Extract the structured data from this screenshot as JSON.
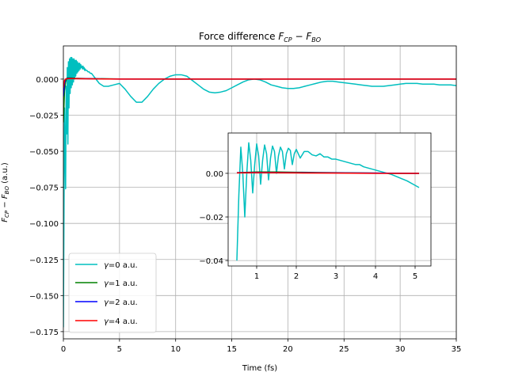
{
  "chart_data": [
    {
      "id": "main",
      "type": "line",
      "title": "Force difference F_{CP} − F_{BO}",
      "title_parts": {
        "prefix": "Force difference ",
        "sub1_base": "F",
        "sub1": "CP",
        "minus": " − ",
        "sub2_base": "F",
        "sub2": "BO"
      },
      "xlabel": "Time (fs)",
      "ylabel": "F_{CP} − F_{BO} (a.u.)",
      "ylabel_parts": {
        "base1": "F",
        "sub1": "CP",
        "minus": " − ",
        "base2": "F",
        "sub2": "BO",
        "unit": " (a.u.)"
      },
      "xlim": [
        0,
        35
      ],
      "ylim": [
        -0.18,
        0.023
      ],
      "xticks": [
        0,
        5,
        10,
        15,
        20,
        25,
        30,
        35
      ],
      "xtick_labels": [
        "0",
        "5",
        "10",
        "15",
        "20",
        "25",
        "30",
        "35"
      ],
      "yticks": [
        0.0,
        -0.025,
        -0.05,
        -0.075,
        -0.1,
        -0.125,
        -0.15,
        -0.175
      ],
      "ytick_labels": [
        "0.000",
        "−0.025",
        "−0.050",
        "−0.075",
        "−0.100",
        "−0.125",
        "−0.150",
        "−0.175"
      ],
      "grid": true,
      "legend_position": "lower-left",
      "series": [
        {
          "name": "γ=0 a.u.",
          "name_parts": {
            "symbol": "γ",
            "rest": "=0 a.u."
          },
          "color": "#00bfbf",
          "x": [
            0.0,
            0.1,
            0.2,
            0.25,
            0.3,
            0.35,
            0.4,
            0.45,
            0.5,
            0.55,
            0.6,
            0.65,
            0.7,
            0.75,
            0.8,
            0.85,
            0.9,
            0.95,
            1.0,
            1.05,
            1.1,
            1.15,
            1.2,
            1.25,
            1.3,
            1.35,
            1.4,
            1.45,
            1.5,
            1.55,
            1.6,
            1.65,
            1.7,
            1.75,
            1.8,
            1.85,
            1.9,
            1.95,
            2.0,
            2.1,
            2.2,
            2.3,
            2.4,
            2.5,
            2.6,
            2.7,
            2.8,
            2.9,
            3.0,
            3.2,
            3.4,
            3.6,
            3.8,
            4.0,
            4.5,
            5.0,
            5.5,
            6.0,
            6.5,
            7.0,
            7.5,
            8.0,
            8.5,
            9.0,
            9.5,
            10.0,
            10.5,
            11.0,
            11.5,
            12.0,
            12.5,
            13.0,
            13.5,
            14.0,
            14.5,
            15.0,
            15.5,
            16.0,
            16.5,
            17.0,
            17.5,
            18.0,
            18.5,
            19.0,
            19.5,
            20.0,
            20.5,
            21.0,
            21.5,
            22.0,
            22.5,
            23.0,
            23.5,
            24.0,
            24.5,
            25.0,
            25.5,
            26.0,
            26.5,
            27.0,
            27.5,
            28.0,
            28.5,
            29.0,
            29.5,
            30.0,
            30.5,
            31.0,
            31.5,
            32.0,
            32.5,
            33.0,
            33.5,
            34.0,
            34.5,
            35.0
          ],
          "y": [
            -0.172,
            -0.02,
            -0.076,
            -0.005,
            -0.038,
            0.008,
            -0.045,
            0.012,
            -0.02,
            0.014,
            -0.01,
            0.015,
            -0.006,
            0.015,
            -0.004,
            0.014,
            -0.002,
            0.014,
            0.0,
            0.013,
            0.002,
            0.013,
            0.004,
            0.012,
            0.005,
            0.011,
            0.006,
            0.011,
            0.007,
            0.01,
            0.008,
            0.009,
            0.007,
            0.009,
            0.007,
            0.008,
            0.006,
            0.007,
            0.006,
            0.006,
            0.005,
            0.005,
            0.004,
            0.004,
            0.003,
            0.002,
            0.001,
            0.0,
            -0.001,
            -0.003,
            -0.004,
            -0.005,
            -0.005,
            -0.005,
            -0.004,
            -0.003,
            -0.007,
            -0.012,
            -0.016,
            -0.016,
            -0.012,
            -0.007,
            -0.003,
            0.0,
            0.002,
            0.003,
            0.003,
            0.002,
            -0.001,
            -0.004,
            -0.007,
            -0.009,
            -0.0095,
            -0.009,
            -0.008,
            -0.006,
            -0.004,
            -0.002,
            -0.0005,
            0.0,
            -0.0005,
            -0.002,
            -0.004,
            -0.005,
            -0.006,
            -0.0065,
            -0.0065,
            -0.006,
            -0.005,
            -0.004,
            -0.003,
            -0.002,
            -0.0015,
            -0.0015,
            -0.002,
            -0.0025,
            -0.003,
            -0.0035,
            -0.004,
            -0.0045,
            -0.005,
            -0.005,
            -0.005,
            -0.0045,
            -0.004,
            -0.0035,
            -0.003,
            -0.003,
            -0.003,
            -0.0035,
            -0.0035,
            -0.0035,
            -0.004,
            -0.004,
            -0.004,
            -0.0045
          ]
        },
        {
          "name": "γ=1 a.u.",
          "name_parts": {
            "symbol": "γ",
            "rest": "=1 a.u."
          },
          "color": "#008000",
          "x": [
            0.0,
            0.1,
            0.2,
            0.3,
            0.4,
            0.5,
            0.7,
            1.0,
            2.0,
            5.0,
            10.0,
            20.0,
            30.0,
            35.0
          ],
          "y": [
            -0.03,
            -0.008,
            -0.002,
            0.0005,
            0.0008,
            0.0008,
            0.0008,
            0.0006,
            0.0004,
            0.0001,
            0.0,
            0.0,
            0.0,
            0.0
          ]
        },
        {
          "name": "γ=2 a.u.",
          "name_parts": {
            "symbol": "γ",
            "rest": "=2 a.u."
          },
          "color": "#0000ff",
          "x": [
            0.0,
            0.1,
            0.2,
            0.3,
            0.5,
            1.0,
            2.0,
            5.0,
            10.0,
            20.0,
            30.0,
            35.0
          ],
          "y": [
            -0.012,
            -0.003,
            0.0,
            0.0003,
            0.0005,
            0.0004,
            0.0003,
            0.0,
            0.0,
            0.0,
            0.0,
            0.0
          ]
        },
        {
          "name": "γ=4 a.u.",
          "name_parts": {
            "symbol": "γ",
            "rest": "=4 a.u."
          },
          "color": "#ff0000",
          "x": [
            0.0,
            0.1,
            0.2,
            0.3,
            0.5,
            1.0,
            2.0,
            5.0,
            10.0,
            20.0,
            30.0,
            35.0
          ],
          "y": [
            -0.006,
            -0.001,
            0.0,
            0.0002,
            0.0003,
            0.0003,
            0.0002,
            0.0,
            0.0,
            0.0,
            0.0,
            0.0
          ]
        }
      ]
    },
    {
      "id": "inset",
      "type": "line",
      "title": "",
      "xlabel": "",
      "ylabel": "",
      "xlim": [
        0.28,
        5.4
      ],
      "ylim": [
        -0.0425,
        0.0185
      ],
      "xticks": [
        1,
        2,
        3,
        4,
        5
      ],
      "xtick_labels": [
        "1",
        "2",
        "3",
        "4",
        "5"
      ],
      "yticks": [
        0.0,
        -0.02,
        -0.04
      ],
      "ytick_labels": [
        "0.00",
        "−0.02",
        "−0.04"
      ],
      "grid": true,
      "series": [
        {
          "color": "#00bfbf",
          "x": [
            0.5,
            0.55,
            0.6,
            0.65,
            0.7,
            0.75,
            0.8,
            0.85,
            0.9,
            0.95,
            1.0,
            1.05,
            1.1,
            1.15,
            1.2,
            1.25,
            1.3,
            1.35,
            1.4,
            1.45,
            1.5,
            1.55,
            1.6,
            1.65,
            1.7,
            1.75,
            1.8,
            1.85,
            1.9,
            1.95,
            2.0,
            2.1,
            2.2,
            2.3,
            2.4,
            2.5,
            2.6,
            2.7,
            2.8,
            2.9,
            3.0,
            3.1,
            3.2,
            3.3,
            3.4,
            3.5,
            3.6,
            3.7,
            3.8,
            3.9,
            4.0,
            4.2,
            4.4,
            4.6,
            4.8,
            5.0,
            5.1
          ],
          "y": [
            -0.04,
            -0.01,
            0.012,
            0.0,
            -0.02,
            0.0,
            0.014,
            0.006,
            -0.009,
            0.004,
            0.0135,
            0.008,
            -0.005,
            0.006,
            0.013,
            0.009,
            -0.003,
            0.007,
            0.0125,
            0.01,
            0.0,
            0.008,
            0.012,
            0.01,
            0.002,
            0.009,
            0.0115,
            0.0105,
            0.004,
            0.009,
            0.011,
            0.007,
            0.01,
            0.01,
            0.0085,
            0.008,
            0.009,
            0.0075,
            0.0075,
            0.0065,
            0.0065,
            0.006,
            0.0055,
            0.005,
            0.0045,
            0.004,
            0.004,
            0.003,
            0.0025,
            0.002,
            0.0015,
            0.0005,
            -0.0005,
            -0.002,
            -0.0035,
            -0.0055,
            -0.0065
          ]
        },
        {
          "color": "#008000",
          "x": [
            0.5,
            1.0,
            1.5,
            2.0,
            2.5,
            3.0,
            3.5,
            4.0,
            4.5,
            5.0,
            5.1
          ],
          "y": [
            0.0003,
            0.0006,
            0.0006,
            0.0005,
            0.0004,
            0.0003,
            0.0002,
            0.0001,
            0.0,
            0.0,
            0.0
          ]
        },
        {
          "color": "#0000ff",
          "x": [
            0.5,
            1.0,
            2.0,
            3.0,
            4.0,
            5.0,
            5.1
          ],
          "y": [
            0.0003,
            0.0004,
            0.0003,
            0.0002,
            0.0001,
            0.0,
            0.0
          ]
        },
        {
          "color": "#ff0000",
          "x": [
            0.5,
            1.0,
            2.0,
            3.0,
            4.0,
            5.0,
            5.1
          ],
          "y": [
            0.0002,
            0.0003,
            0.0002,
            0.0001,
            0.0,
            0.0,
            0.0
          ]
        }
      ]
    }
  ]
}
